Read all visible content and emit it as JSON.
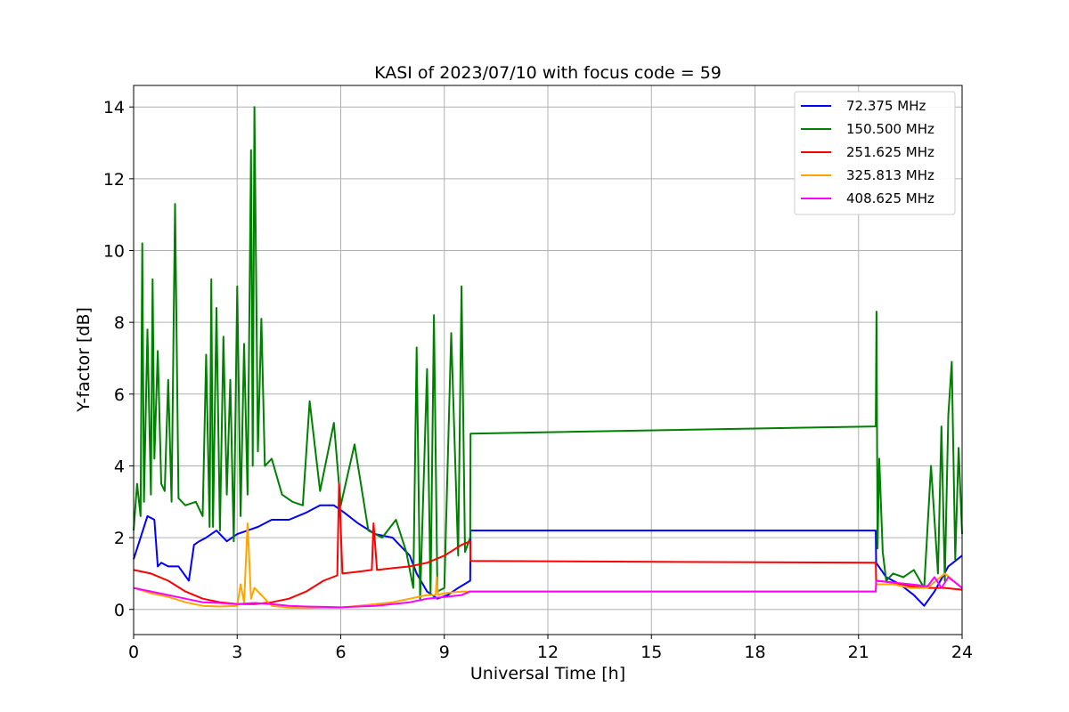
{
  "chart_data": {
    "type": "line",
    "title": "KASI of 2023/07/10 with focus code = 59",
    "xlabel": "Universal Time [h]",
    "ylabel": "Y-factor [dB]",
    "xlim": [
      0,
      24
    ],
    "ylim": [
      -0.7,
      14.6
    ],
    "xticks": [
      0,
      3,
      6,
      9,
      12,
      15,
      18,
      21,
      24
    ],
    "yticks": [
      0,
      2,
      4,
      6,
      8,
      10,
      12,
      14
    ],
    "grid": true,
    "legend_placement": "top-right",
    "series": [
      {
        "name": " 72.375 MHz",
        "color": "#0000ff",
        "x": [
          0,
          0.2,
          0.4,
          0.6,
          0.7,
          0.8,
          1.0,
          1.3,
          1.6,
          1.75,
          1.9,
          2.1,
          2.4,
          2.7,
          3.0,
          3.3,
          3.6,
          4.0,
          4.5,
          5.0,
          5.4,
          5.8,
          6.1,
          6.5,
          7.0,
          7.5,
          8.0,
          8.2,
          8.5,
          8.8,
          9.1,
          9.4,
          9.75,
          9.76,
          21.5,
          21.51,
          21.8,
          22.2,
          22.6,
          22.9,
          23.2,
          23.6,
          24
        ],
        "y": [
          1.4,
          2.0,
          2.6,
          2.5,
          1.2,
          1.3,
          1.2,
          1.2,
          0.8,
          1.8,
          1.9,
          2.0,
          2.2,
          1.9,
          2.1,
          2.2,
          2.3,
          2.5,
          2.5,
          2.7,
          2.9,
          2.9,
          2.7,
          2.4,
          2.1,
          2.0,
          1.5,
          1.0,
          0.5,
          0.3,
          0.4,
          0.6,
          0.8,
          2.2,
          2.2,
          1.3,
          0.9,
          0.7,
          0.4,
          0.1,
          0.5,
          1.2,
          1.5
        ]
      },
      {
        "name": "150.500 MHz",
        "color": "#008000",
        "x": [
          0,
          0.1,
          0.2,
          0.25,
          0.3,
          0.4,
          0.5,
          0.55,
          0.6,
          0.7,
          0.8,
          0.9,
          1.0,
          1.1,
          1.2,
          1.3,
          1.5,
          1.8,
          2.0,
          2.1,
          2.2,
          2.25,
          2.3,
          2.4,
          2.5,
          2.6,
          2.7,
          2.8,
          2.9,
          3.0,
          3.1,
          3.2,
          3.3,
          3.4,
          3.45,
          3.5,
          3.6,
          3.7,
          3.8,
          4.0,
          4.3,
          4.6,
          4.9,
          5.1,
          5.4,
          5.8,
          6.0,
          6.4,
          6.8,
          7.2,
          7.6,
          7.9,
          8.1,
          8.2,
          8.3,
          8.5,
          8.6,
          8.7,
          8.8,
          9.0,
          9.2,
          9.4,
          9.5,
          9.6,
          9.75,
          9.76,
          21.5,
          21.52,
          21.55,
          21.6,
          21.7,
          21.8,
          22.0,
          22.3,
          22.6,
          22.9,
          23.1,
          23.3,
          23.4,
          23.5,
          23.6,
          23.7,
          23.8,
          23.9,
          24
        ],
        "y": [
          2.2,
          3.5,
          2.6,
          10.2,
          3.0,
          7.8,
          3.2,
          9.2,
          4.2,
          7.2,
          3.5,
          3.3,
          6.4,
          3.0,
          11.3,
          3.1,
          2.9,
          3.0,
          2.6,
          7.1,
          2.3,
          9.2,
          2.3,
          8.4,
          2.2,
          7.6,
          3.2,
          6.4,
          1.9,
          9.0,
          2.6,
          7.4,
          3.2,
          12.8,
          4.0,
          14.0,
          4.4,
          8.1,
          4.0,
          4.2,
          3.2,
          3.0,
          2.9,
          5.8,
          3.3,
          5.2,
          2.9,
          4.6,
          2.2,
          2.0,
          2.5,
          1.6,
          0.6,
          7.3,
          0.3,
          6.7,
          0.4,
          8.2,
          0.5,
          0.6,
          7.7,
          1.5,
          9.0,
          1.6,
          2.0,
          4.9,
          5.1,
          8.3,
          1.7,
          4.2,
          1.6,
          0.8,
          1.0,
          0.9,
          1.1,
          0.6,
          4.0,
          1.0,
          5.1,
          0.8,
          5.4,
          6.9,
          1.4,
          4.5,
          2.1
        ]
      },
      {
        "name": "251.625 MHz",
        "color": "#ff0000",
        "x": [
          0,
          0.5,
          1.0,
          1.5,
          2.0,
          2.5,
          3.0,
          3.5,
          4.0,
          4.5,
          5.0,
          5.5,
          5.9,
          5.95,
          6.05,
          6.5,
          6.9,
          6.95,
          7.05,
          7.5,
          8.0,
          8.5,
          9.0,
          9.5,
          9.75,
          9.76,
          21.5,
          21.51,
          22.0,
          22.5,
          23.0,
          23.5,
          24
        ],
        "y": [
          1.1,
          1.0,
          0.8,
          0.5,
          0.3,
          0.2,
          0.15,
          0.15,
          0.2,
          0.3,
          0.5,
          0.8,
          0.95,
          3.5,
          1.0,
          1.05,
          1.1,
          2.4,
          1.1,
          1.15,
          1.2,
          1.3,
          1.5,
          1.8,
          1.9,
          1.35,
          1.3,
          0.8,
          0.75,
          0.65,
          0.6,
          0.6,
          0.55
        ]
      },
      {
        "name": "325.813 MHz",
        "color": "#ffa500",
        "x": [
          0,
          0.5,
          1.0,
          1.5,
          2.0,
          2.5,
          3.0,
          3.1,
          3.2,
          3.3,
          3.4,
          3.5,
          4.0,
          4.5,
          5.0,
          5.5,
          6.0,
          6.5,
          7.0,
          7.5,
          8.0,
          8.5,
          8.75,
          8.78,
          8.82,
          9.0,
          9.5,
          9.75,
          9.76,
          21.5,
          21.51,
          22.0,
          22.5,
          23.0,
          23.5,
          24
        ],
        "y": [
          0.6,
          0.45,
          0.35,
          0.2,
          0.1,
          0.08,
          0.1,
          0.7,
          0.2,
          2.4,
          0.3,
          0.6,
          0.1,
          0.05,
          0.04,
          0.05,
          0.05,
          0.1,
          0.15,
          0.2,
          0.3,
          0.4,
          0.4,
          0.9,
          0.4,
          0.45,
          0.5,
          0.5,
          0.5,
          0.5,
          0.7,
          0.7,
          0.6,
          0.6,
          1.0,
          0.6
        ]
      },
      {
        "name": "408.625 MHz",
        "color": "#ff00ff",
        "x": [
          0,
          0.5,
          1.0,
          1.5,
          2.0,
          2.5,
          3.0,
          3.5,
          4.0,
          4.5,
          5.0,
          5.5,
          6.0,
          6.5,
          7.0,
          7.5,
          8.0,
          8.5,
          9.0,
          9.5,
          9.75,
          9.76,
          21.5,
          21.51,
          22.0,
          22.5,
          23.0,
          23.2,
          23.4,
          23.6,
          24
        ],
        "y": [
          0.6,
          0.5,
          0.4,
          0.3,
          0.2,
          0.18,
          0.15,
          0.18,
          0.15,
          0.1,
          0.08,
          0.07,
          0.06,
          0.08,
          0.1,
          0.15,
          0.2,
          0.3,
          0.35,
          0.4,
          0.5,
          0.5,
          0.5,
          0.8,
          0.75,
          0.7,
          0.65,
          0.9,
          0.6,
          0.9,
          0.6
        ]
      }
    ]
  }
}
